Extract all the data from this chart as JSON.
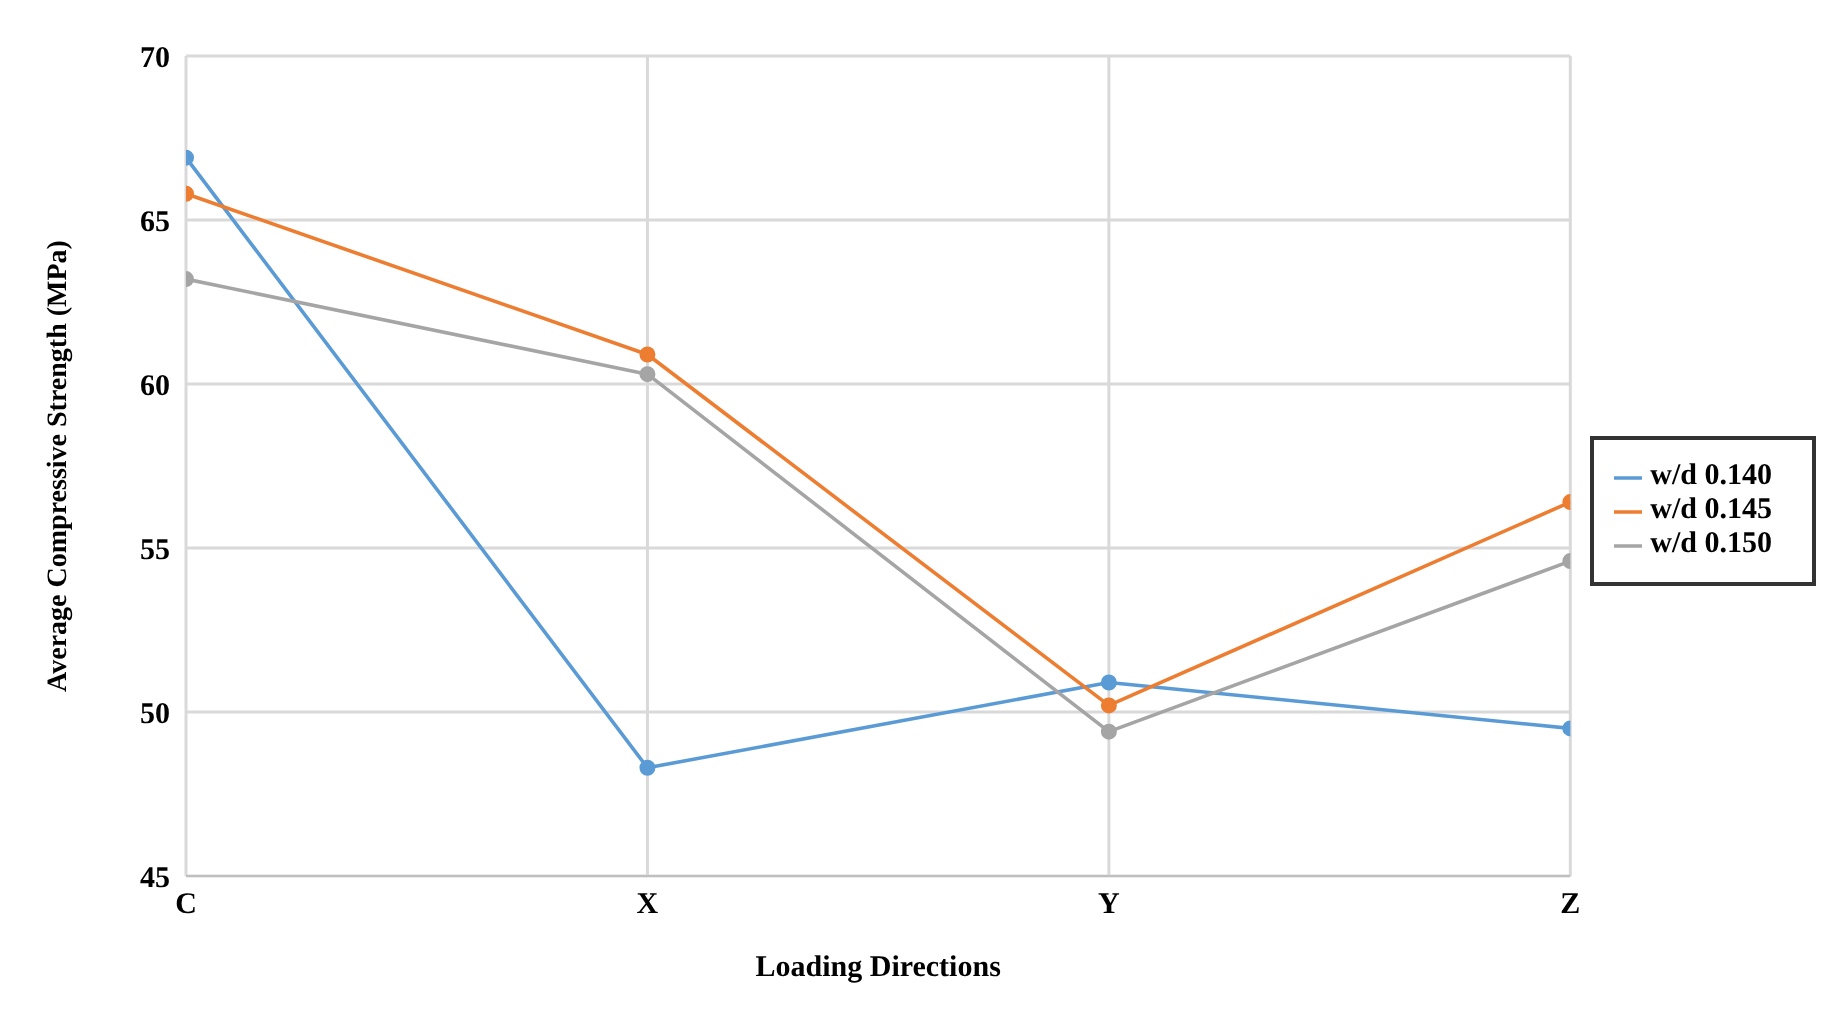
{
  "chart_data": {
    "type": "line",
    "xlabel": "Loading Directions",
    "ylabel": "Average Compressive Strength (MPa)",
    "categories": [
      "C",
      "X",
      "Y",
      "Z"
    ],
    "series": [
      {
        "name": "w/d 0.140",
        "color": "#5b9bd5",
        "values": [
          66.9,
          48.3,
          50.9,
          49.5
        ]
      },
      {
        "name": "w/d 0.145",
        "color": "#ed7d31",
        "values": [
          65.8,
          60.9,
          50.2,
          56.4
        ]
      },
      {
        "name": "w/d 0.150",
        "color": "#a5a5a5",
        "values": [
          63.2,
          60.3,
          49.4,
          54.6
        ]
      }
    ],
    "ylim": [
      45,
      70
    ],
    "yticks": [
      45,
      50,
      55,
      60,
      65,
      70
    ],
    "grid": true,
    "legend": "right",
    "marker": "circle",
    "line_style": "solid"
  }
}
